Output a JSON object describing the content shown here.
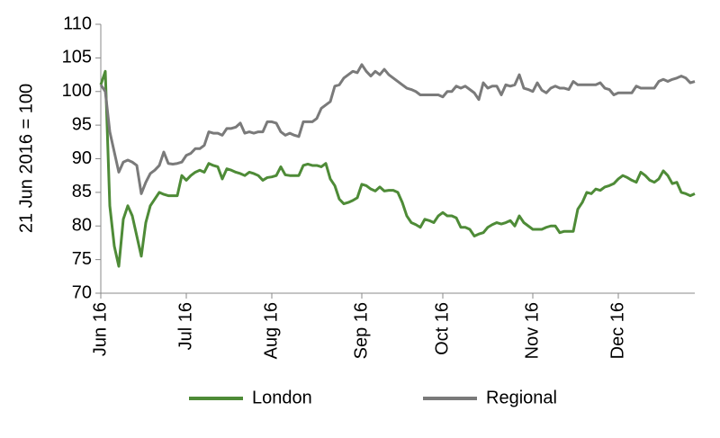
{
  "chart_data": {
    "type": "line",
    "y_label": "21 Jun 2016 = 100",
    "categories": [
      "Jun 16",
      null,
      null,
      null,
      null,
      null,
      null,
      null,
      null,
      null,
      null,
      null,
      null,
      null,
      null,
      null,
      null,
      null,
      null,
      "Jul 16",
      null,
      null,
      null,
      null,
      null,
      null,
      null,
      null,
      null,
      null,
      null,
      null,
      null,
      null,
      null,
      null,
      null,
      null,
      "Aug 16",
      null,
      null,
      null,
      null,
      null,
      null,
      null,
      null,
      null,
      null,
      null,
      null,
      null,
      null,
      null,
      null,
      null,
      null,
      null,
      "Sep 16",
      null,
      null,
      null,
      null,
      null,
      null,
      null,
      null,
      null,
      null,
      null,
      null,
      null,
      null,
      null,
      null,
      null,
      "Oct 16",
      null,
      null,
      null,
      null,
      null,
      null,
      null,
      null,
      null,
      null,
      null,
      null,
      null,
      null,
      null,
      null,
      null,
      null,
      null,
      "Nov 16",
      null,
      null,
      null,
      null,
      null,
      null,
      null,
      null,
      null,
      null,
      null,
      null,
      null,
      null,
      null,
      null,
      null,
      null,
      "Dec 16",
      null,
      null,
      null,
      null,
      null,
      null,
      null,
      null,
      null,
      null,
      null,
      null,
      null,
      null,
      null,
      null,
      null
    ],
    "series": [
      {
        "name": "London",
        "color": "#4e8b37",
        "values": [
          101,
          103,
          83,
          77,
          74,
          81,
          83,
          81.5,
          78.5,
          75.5,
          80.5,
          83,
          84,
          85,
          84.7,
          84.5,
          84.5,
          84.5,
          87.5,
          86.8,
          87.5,
          88,
          88.3,
          88,
          89.3,
          89,
          88.8,
          87,
          88.5,
          88.3,
          88,
          87.8,
          87.5,
          88,
          87.8,
          87.5,
          86.8,
          87.2,
          87.3,
          87.5,
          88.8,
          87.6,
          87.5,
          87.5,
          87.5,
          89,
          89.2,
          89,
          89,
          88.8,
          89.3,
          87,
          86,
          84,
          83.3,
          83.5,
          83.8,
          84.2,
          86.2,
          86,
          85.5,
          85.2,
          85.8,
          85.2,
          85.3,
          85.3,
          85,
          83.5,
          81.5,
          80.5,
          80.2,
          79.8,
          81,
          80.8,
          80.5,
          81.5,
          82,
          81.5,
          81.5,
          81.2,
          79.8,
          79.8,
          79.5,
          78.5,
          78.8,
          79,
          79.8,
          80.2,
          80.5,
          80.3,
          80.5,
          80.8,
          80,
          81.5,
          80.5,
          80,
          79.5,
          79.5,
          79.5,
          79.8,
          80,
          80,
          79,
          79.2,
          79.2,
          79.2,
          82.5,
          83.5,
          85,
          84.8,
          85.5,
          85.3,
          85.8,
          86,
          86.3,
          87,
          87.5,
          87.2,
          86.8,
          86.5,
          88,
          87.5,
          86.8,
          86.5,
          87,
          88.2,
          87.5,
          86.3,
          86.5,
          85,
          84.8,
          84.5,
          84.8
        ]
      },
      {
        "name": "Regional",
        "color": "#7a7a7a",
        "values": [
          101,
          100,
          94,
          91,
          88,
          89.5,
          89.8,
          89.5,
          89,
          84.8,
          86.5,
          87.8,
          88.3,
          89,
          91,
          89.3,
          89.2,
          89.3,
          89.5,
          90.5,
          90.8,
          91.5,
          91.5,
          92,
          94,
          93.8,
          93.8,
          93.5,
          94.5,
          94.5,
          94.7,
          95.3,
          93.8,
          94,
          93.8,
          94,
          94,
          95.5,
          95.5,
          95.3,
          94,
          93.5,
          93.8,
          93.5,
          93.3,
          95.5,
          95.5,
          95.5,
          96,
          97.5,
          98,
          98.5,
          100.8,
          101,
          102,
          102.5,
          103,
          102.8,
          104,
          103,
          102.3,
          103,
          102.5,
          103.3,
          102.5,
          102,
          101.5,
          101,
          100.5,
          100.3,
          100,
          99.5,
          99.5,
          99.5,
          99.5,
          99.5,
          99.2,
          100,
          100,
          100.8,
          100.5,
          100.8,
          100.3,
          99.8,
          98.8,
          101.3,
          100.5,
          100.8,
          100.8,
          99.5,
          101,
          100.8,
          101,
          102.5,
          100.5,
          100.3,
          100,
          101.3,
          100.2,
          99.8,
          100.5,
          100.8,
          100.5,
          100.5,
          100.3,
          101.5,
          101,
          101,
          101,
          101,
          101,
          101.3,
          100.5,
          100.3,
          99.5,
          99.8,
          99.8,
          99.8,
          99.8,
          100.8,
          100.5,
          100.5,
          100.5,
          100.5,
          101.5,
          101.8,
          101.5,
          101.8,
          102,
          102.3,
          102,
          101.3,
          101.5
        ]
      }
    ],
    "ylim": [
      70,
      110
    ],
    "yticks": [
      70,
      75,
      80,
      85,
      90,
      95,
      100,
      105,
      110
    ],
    "grid": false,
    "legend": "bottom"
  }
}
